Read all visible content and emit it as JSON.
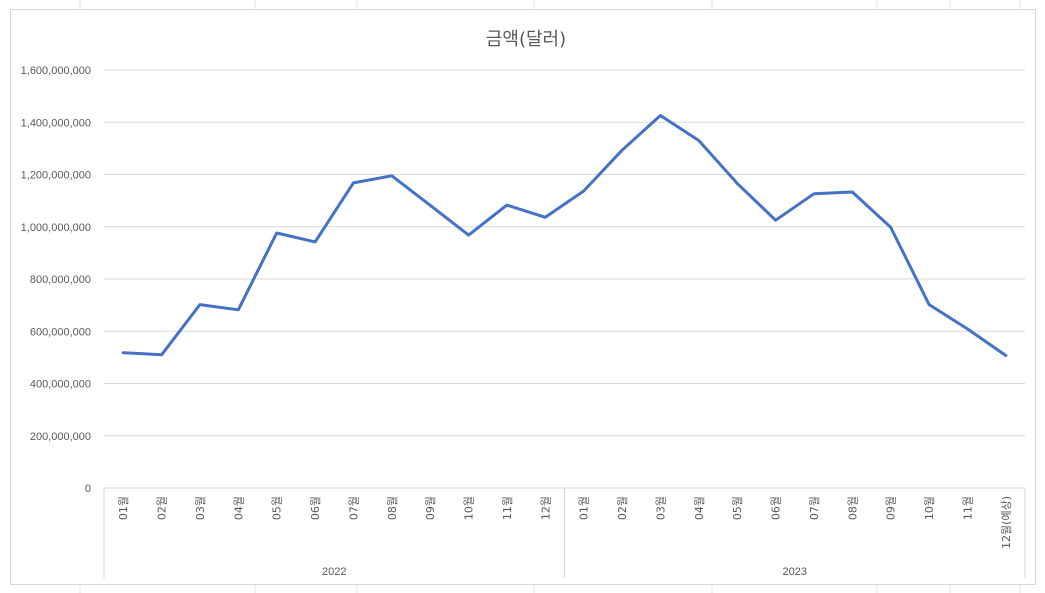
{
  "chart_data": {
    "type": "line",
    "title": "금액(달러)",
    "xlabel": "",
    "ylabel": "",
    "ylim": [
      0,
      1600000000
    ],
    "y_ticks": [
      0,
      200000000,
      400000000,
      600000000,
      800000000,
      1000000000,
      1200000000,
      1400000000,
      1600000000
    ],
    "y_tick_labels": [
      "0",
      "200,000,000",
      "400,000,000",
      "600,000,000",
      "800,000,000",
      "1,000,000,000",
      "1,200,000,000",
      "1,400,000,000",
      "1,600,000,000"
    ],
    "grid": true,
    "legend": "none",
    "series_color": "#4472c4",
    "groups": [
      {
        "label": "2022",
        "categories": [
          "01월",
          "02월",
          "03월",
          "04월",
          "05월",
          "06월",
          "07월",
          "08월",
          "09월",
          "10월",
          "11월",
          "12월"
        ]
      },
      {
        "label": "2023",
        "categories": [
          "01월",
          "02월",
          "03월",
          "04월",
          "05월",
          "06월",
          "07월",
          "08월",
          "09월",
          "10월",
          "11월",
          "12월(예상)"
        ]
      }
    ],
    "values": [
      518000000,
      510000000,
      702000000,
      682000000,
      976000000,
      942000000,
      1168000000,
      1195000000,
      1082000000,
      968000000,
      1083000000,
      1036000000,
      1137000000,
      1293000000,
      1426000000,
      1330000000,
      1166000000,
      1025000000,
      1126000000,
      1133000000,
      998000000,
      702000000,
      609000000,
      507000000
    ]
  }
}
